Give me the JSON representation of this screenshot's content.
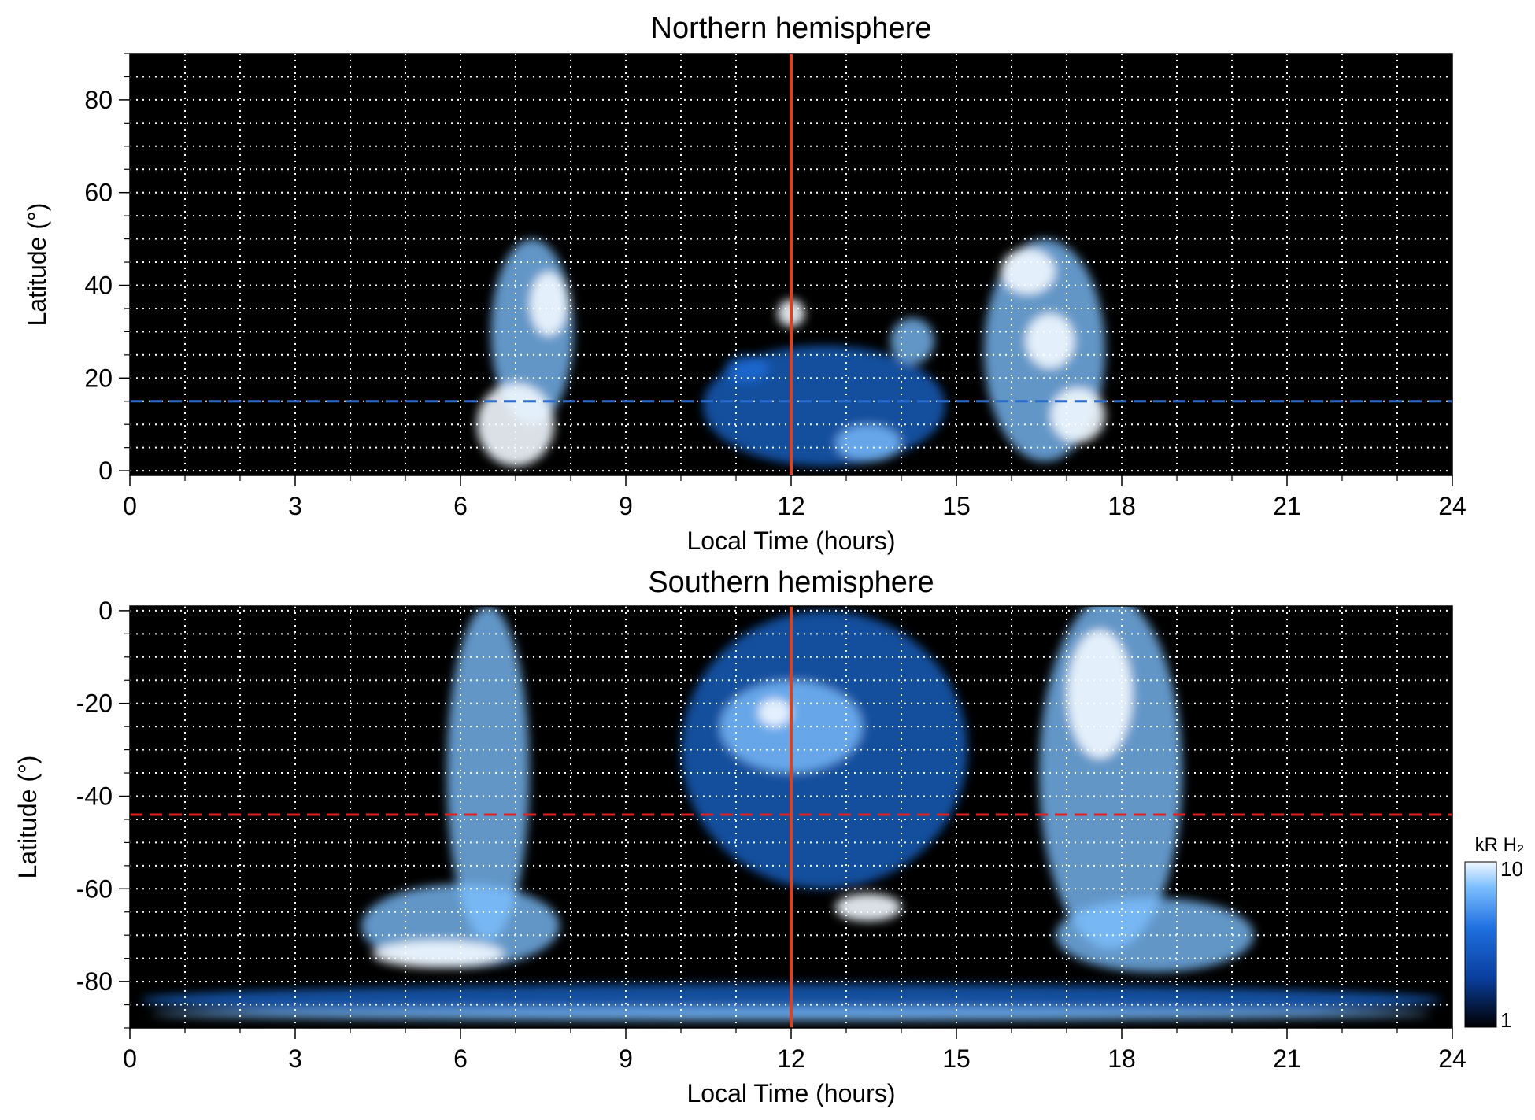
{
  "colors": {
    "background": "#000000",
    "aurora_dim": "#0a3f9e",
    "aurora_mid": "#1f6fe0",
    "aurora_bright": "#7ec0ff",
    "aurora_peak": "#f2f8ff",
    "grid": "#ffffff",
    "noon_line": "#e0401a",
    "north_ref_line": "#2a6bd0",
    "south_ref_line": "#e02020"
  },
  "chart_data": [
    {
      "type": "heatmap",
      "title": "Northern hemisphere",
      "xlabel": "Local Time (hours)",
      "ylabel": "Latitude (°)",
      "xlim": [
        0,
        24
      ],
      "ylim": [
        -1,
        90
      ],
      "x_ticks": [
        "0",
        "3",
        "6",
        "9",
        "12",
        "15",
        "18",
        "21",
        "24"
      ],
      "y_ticks": [
        "0",
        "20",
        "40",
        "60",
        "80"
      ],
      "grid": true,
      "vertical_marker_x": 12,
      "horizontal_marker_y": 15,
      "emission_regions": [
        {
          "x": 7.3,
          "y": 30,
          "rx": 0.75,
          "ry": 20,
          "level": "bright"
        },
        {
          "x": 7.0,
          "y": 10,
          "rx": 0.7,
          "ry": 9,
          "level": "peak"
        },
        {
          "x": 7.6,
          "y": 36,
          "rx": 0.35,
          "ry": 7,
          "level": "peak"
        },
        {
          "x": 16.6,
          "y": 26,
          "rx": 1.1,
          "ry": 24,
          "level": "bright"
        },
        {
          "x": 16.3,
          "y": 43,
          "rx": 0.5,
          "ry": 5,
          "level": "peak"
        },
        {
          "x": 16.7,
          "y": 28,
          "rx": 0.45,
          "ry": 6,
          "level": "peak"
        },
        {
          "x": 17.2,
          "y": 12,
          "rx": 0.5,
          "ry": 6,
          "level": "peak"
        },
        {
          "x": 12.6,
          "y": 14,
          "rx": 2.2,
          "ry": 13,
          "level": "mid"
        },
        {
          "x": 12.0,
          "y": 34,
          "rx": 0.25,
          "ry": 3,
          "level": "peak"
        },
        {
          "x": 14.2,
          "y": 28,
          "rx": 0.4,
          "ry": 5,
          "level": "bright"
        },
        {
          "x": 11.2,
          "y": 22,
          "rx": 0.4,
          "ry": 3,
          "level": "mid"
        },
        {
          "x": 13.4,
          "y": 6,
          "rx": 0.6,
          "ry": 4,
          "level": "bright"
        }
      ]
    },
    {
      "type": "heatmap",
      "title": "Southern hemisphere",
      "xlabel": "Local Time (hours)",
      "ylabel": "Latitude (°)",
      "xlim": [
        0,
        24
      ],
      "ylim": [
        -90,
        1
      ],
      "x_ticks": [
        "0",
        "3",
        "6",
        "9",
        "12",
        "15",
        "18",
        "21",
        "24"
      ],
      "y_ticks": [
        "0",
        "-20",
        "-40",
        "-60",
        "-80"
      ],
      "grid": true,
      "vertical_marker_x": 12,
      "horizontal_marker_y": -44,
      "colorbar": {
        "label": "kR H₂",
        "min": "1",
        "max": "10",
        "scale": "log"
      },
      "emission_regions": [
        {
          "x": 6.5,
          "y": -35,
          "rx": 0.75,
          "ry": 36,
          "level": "bright"
        },
        {
          "x": 6.0,
          "y": -68,
          "rx": 1.8,
          "ry": 9,
          "level": "bright"
        },
        {
          "x": 5.6,
          "y": -74,
          "rx": 1.2,
          "ry": 3,
          "level": "peak"
        },
        {
          "x": 12.6,
          "y": -30,
          "rx": 2.6,
          "ry": 30,
          "level": "mid"
        },
        {
          "x": 12.0,
          "y": -25,
          "rx": 1.3,
          "ry": 10,
          "level": "bright"
        },
        {
          "x": 13.4,
          "y": -64,
          "rx": 0.6,
          "ry": 3,
          "level": "peak"
        },
        {
          "x": 11.7,
          "y": -22,
          "rx": 0.3,
          "ry": 3,
          "level": "peak"
        },
        {
          "x": 17.8,
          "y": -35,
          "rx": 1.3,
          "ry": 38,
          "level": "bright"
        },
        {
          "x": 17.6,
          "y": -18,
          "rx": 0.6,
          "ry": 14,
          "level": "peak"
        },
        {
          "x": 18.6,
          "y": -70,
          "rx": 1.8,
          "ry": 8,
          "level": "bright"
        },
        {
          "x": 12.0,
          "y": -84,
          "rx": 11.8,
          "ry": 3.5,
          "level": "mid"
        },
        {
          "x": 12.0,
          "y": -87,
          "rx": 11.6,
          "ry": 1.5,
          "level": "bright"
        }
      ]
    }
  ]
}
